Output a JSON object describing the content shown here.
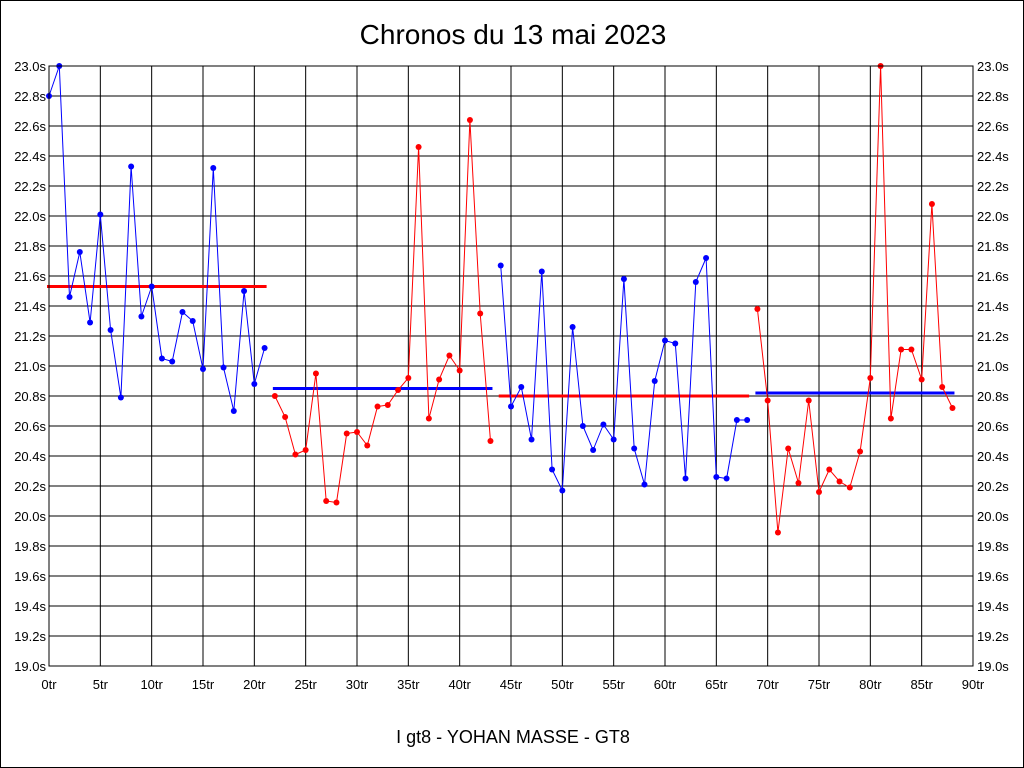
{
  "chart_data": {
    "type": "line",
    "title": "Chronos du 13 mai 2023",
    "subtitle": "I gt8 - YOHAN MASSE - GT8",
    "xlim": [
      0,
      90
    ],
    "ylim": [
      19.0,
      23.0
    ],
    "x_ticks": [
      "0tr",
      "5tr",
      "10tr",
      "15tr",
      "20tr",
      "25tr",
      "30tr",
      "35tr",
      "40tr",
      "45tr",
      "50tr",
      "55tr",
      "60tr",
      "65tr",
      "70tr",
      "75tr",
      "80tr",
      "85tr",
      "90tr"
    ],
    "y_ticks": [
      "19.0s",
      "19.2s",
      "19.4s",
      "19.6s",
      "19.8s",
      "20.0s",
      "20.2s",
      "20.4s",
      "20.6s",
      "20.8s",
      "21.0s",
      "21.2s",
      "21.4s",
      "21.6s",
      "21.8s",
      "22.0s",
      "22.2s",
      "22.4s",
      "22.6s",
      "22.8s",
      "23.0s"
    ],
    "grid": true,
    "series": [
      {
        "color": "#0000ff",
        "x": [
          0,
          1,
          2,
          3,
          4,
          5,
          6,
          7,
          8,
          9,
          10,
          11,
          12,
          13,
          14,
          15,
          16,
          17,
          18,
          19,
          20,
          21
        ],
        "y": [
          22.8,
          23.0,
          21.46,
          21.76,
          21.29,
          22.01,
          21.24,
          20.79,
          22.33,
          21.33,
          21.53,
          21.05,
          21.03,
          21.36,
          21.3,
          20.98,
          22.32,
          20.99,
          20.7,
          21.5,
          20.88,
          21.12
        ],
        "mean": 21.53,
        "mean_color": "#ff0000",
        "mean_range": [
          0,
          21
        ]
      },
      {
        "color": "#ff0000",
        "x": [
          22,
          23,
          24,
          25,
          26,
          27,
          28,
          29,
          30,
          31,
          32,
          33,
          34,
          35,
          36,
          37,
          38,
          39,
          40,
          41,
          42,
          43
        ],
        "y": [
          20.8,
          20.66,
          20.41,
          20.44,
          20.95,
          20.1,
          20.09,
          20.55,
          20.56,
          20.47,
          20.73,
          20.74,
          20.84,
          20.92,
          22.46,
          20.65,
          20.91,
          21.07,
          20.97,
          22.64,
          21.35,
          20.5
        ],
        "mean": 20.85,
        "mean_color": "#0000ff",
        "mean_range": [
          22,
          43
        ]
      },
      {
        "color": "#0000ff",
        "x": [
          44,
          45,
          46,
          47,
          48,
          49,
          50,
          51,
          52,
          53,
          54,
          55,
          56,
          57,
          58,
          59,
          60,
          61,
          62,
          63,
          64,
          65,
          66,
          67,
          68
        ],
        "y": [
          21.67,
          20.73,
          20.86,
          20.51,
          21.63,
          20.31,
          20.17,
          21.26,
          20.6,
          20.44,
          20.61,
          20.51,
          21.58,
          20.45,
          20.21,
          20.9,
          21.17,
          21.15,
          20.25,
          21.56,
          21.72,
          20.26,
          20.25,
          20.64,
          20.64
        ],
        "mean": 20.8,
        "mean_color": "#ff0000",
        "mean_range": [
          44,
          68
        ]
      },
      {
        "color": "#ff0000",
        "x": [
          69,
          70,
          71,
          72,
          73,
          74,
          75,
          76,
          77,
          78,
          79,
          80,
          81,
          82,
          83,
          84,
          85,
          86,
          87,
          88
        ],
        "y": [
          21.38,
          20.77,
          19.89,
          20.45,
          20.22,
          20.77,
          20.16,
          20.31,
          20.23,
          20.19,
          20.43,
          20.92,
          23.0,
          20.65,
          21.11,
          21.11,
          20.91,
          22.08,
          20.86,
          20.72
        ],
        "mean": 20.82,
        "mean_color": "#0000ff",
        "mean_range": [
          69,
          88
        ]
      }
    ]
  }
}
